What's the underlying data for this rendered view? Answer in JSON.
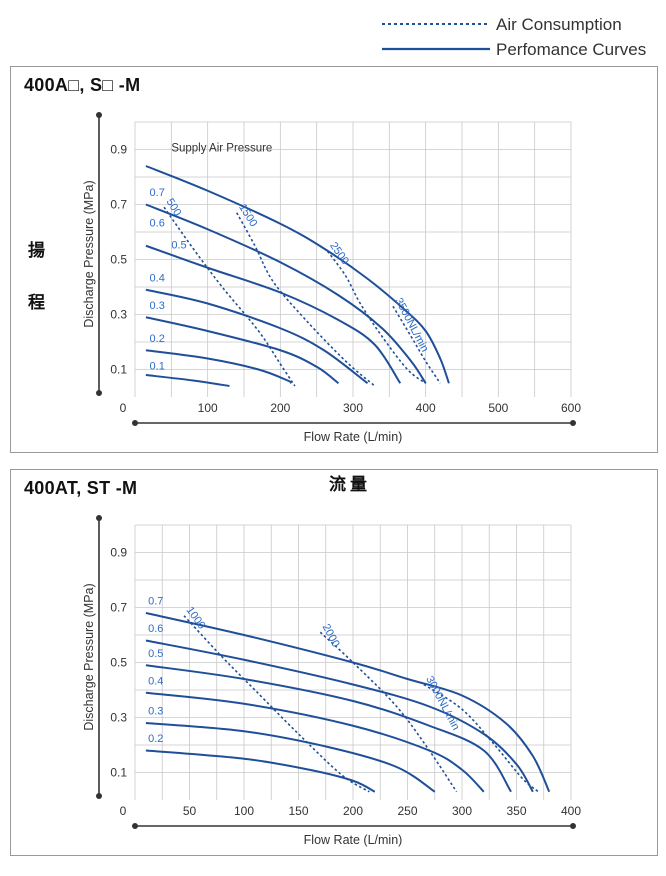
{
  "legend": {
    "air_consumption": "Air Consumption",
    "performance_curves": "Perfomance Curves",
    "dashed_color": "#1f4f99",
    "solid_color": "#1f4f99"
  },
  "side_labels": {
    "lift_1": "揚",
    "lift_2": "程",
    "flow": "流量"
  },
  "colors": {
    "curve": "#1f4f99",
    "grid": "#c8c8c8",
    "axis": "#333333",
    "label": "#2e6cc7"
  },
  "chart_data": [
    {
      "title": "400A□, S□  -M",
      "type": "line",
      "xlabel": "Flow Rate (L/min)",
      "ylabel": "Discharge Pressure (MPa)",
      "xlim": [
        0,
        600
      ],
      "ylim": [
        0,
        1.0
      ],
      "x_ticks": [
        "0",
        "100",
        "200",
        "300",
        "400",
        "500",
        "600"
      ],
      "y_ticks": [
        "0.1",
        "0.3",
        "0.5",
        "0.7",
        "0.9"
      ],
      "grid": true,
      "annotation": "Supply Air Pressure",
      "series": [
        {
          "name": "0.7",
          "points": [
            [
              15,
              0.84
            ],
            [
              100,
              0.75
            ],
            [
              200,
              0.63
            ],
            [
              260,
              0.54
            ],
            [
              320,
              0.43
            ],
            [
              370,
              0.32
            ],
            [
              400,
              0.24
            ],
            [
              420,
              0.14
            ],
            [
              432,
              0.05
            ]
          ]
        },
        {
          "name": "0.6",
          "points": [
            [
              15,
              0.7
            ],
            [
              100,
              0.61
            ],
            [
              200,
              0.49
            ],
            [
              280,
              0.37
            ],
            [
              340,
              0.25
            ],
            [
              380,
              0.13
            ],
            [
              400,
              0.05
            ]
          ]
        },
        {
          "name": "0.5",
          "points": [
            [
              15,
              0.55
            ],
            [
              100,
              0.47
            ],
            [
              200,
              0.38
            ],
            [
              280,
              0.28
            ],
            [
              330,
              0.19
            ],
            [
              365,
              0.05
            ]
          ]
        },
        {
          "name": "0.4",
          "points": [
            [
              15,
              0.39
            ],
            [
              100,
              0.34
            ],
            [
              200,
              0.25
            ],
            [
              260,
              0.17
            ],
            [
              320,
              0.05
            ]
          ]
        },
        {
          "name": "0.3",
          "points": [
            [
              15,
              0.29
            ],
            [
              100,
              0.24
            ],
            [
              200,
              0.17
            ],
            [
              250,
              0.11
            ],
            [
              280,
              0.05
            ]
          ]
        },
        {
          "name": "0.2",
          "points": [
            [
              15,
              0.17
            ],
            [
              100,
              0.14
            ],
            [
              170,
              0.1
            ],
            [
              210,
              0.06
            ],
            [
              215,
              0.05
            ]
          ]
        },
        {
          "name": "0.1",
          "points": [
            [
              15,
              0.08
            ],
            [
              80,
              0.06
            ],
            [
              130,
              0.04
            ]
          ]
        }
      ],
      "consumption_lines": [
        {
          "name": "500",
          "points": [
            [
              40,
              0.69
            ],
            [
              80,
              0.54
            ],
            [
              120,
              0.4
            ],
            [
              170,
              0.24
            ],
            [
              200,
              0.12
            ],
            [
              220,
              0.04
            ]
          ]
        },
        {
          "name": "1500",
          "points": [
            [
              140,
              0.67
            ],
            [
              165,
              0.55
            ],
            [
              190,
              0.42
            ],
            [
              235,
              0.28
            ],
            [
              290,
              0.13
            ],
            [
              330,
              0.04
            ]
          ]
        },
        {
          "name": "2500",
          "points": [
            [
              265,
              0.53
            ],
            [
              290,
              0.44
            ],
            [
              310,
              0.34
            ],
            [
              340,
              0.22
            ],
            [
              375,
              0.1
            ],
            [
              400,
              0.05
            ]
          ]
        },
        {
          "name": "3500NL/min",
          "points": [
            [
              355,
              0.33
            ],
            [
              380,
              0.22
            ],
            [
              400,
              0.13
            ],
            [
              420,
              0.05
            ]
          ]
        }
      ],
      "label_positions": {
        "0.7": [
          20,
          0.72
        ],
        "0.6": [
          20,
          0.61
        ],
        "0.5": [
          50,
          0.53
        ],
        "0.4": [
          20,
          0.41
        ],
        "0.3": [
          20,
          0.31
        ],
        "0.2": [
          20,
          0.19
        ],
        "0.1": [
          20,
          0.09
        ]
      }
    },
    {
      "title": "400AT, ST  -M",
      "type": "line",
      "xlabel": "Flow Rate (L/min)",
      "ylabel": "Discharge Pressure (MPa)",
      "xlim": [
        0,
        400
      ],
      "ylim": [
        0,
        1.0
      ],
      "x_ticks": [
        "0",
        "50",
        "100",
        "150",
        "200",
        "250",
        "300",
        "350",
        "400"
      ],
      "y_ticks": [
        "0.1",
        "0.3",
        "0.5",
        "0.7",
        "0.9"
      ],
      "grid": true,
      "series": [
        {
          "name": "0.7",
          "points": [
            [
              10,
              0.68
            ],
            [
              100,
              0.6
            ],
            [
              200,
              0.5
            ],
            [
              250,
              0.44
            ],
            [
              300,
              0.38
            ],
            [
              340,
              0.28
            ],
            [
              365,
              0.16
            ],
            [
              380,
              0.03
            ]
          ]
        },
        {
          "name": "0.6",
          "points": [
            [
              10,
              0.58
            ],
            [
              100,
              0.51
            ],
            [
              200,
              0.42
            ],
            [
              270,
              0.34
            ],
            [
              320,
              0.24
            ],
            [
              350,
              0.13
            ],
            [
              365,
              0.03
            ]
          ]
        },
        {
          "name": "0.5",
          "points": [
            [
              10,
              0.49
            ],
            [
              100,
              0.44
            ],
            [
              200,
              0.36
            ],
            [
              270,
              0.27
            ],
            [
              320,
              0.18
            ],
            [
              345,
              0.03
            ]
          ]
        },
        {
          "name": "0.4",
          "points": [
            [
              10,
              0.39
            ],
            [
              100,
              0.35
            ],
            [
              200,
              0.27
            ],
            [
              270,
              0.18
            ],
            [
              300,
              0.11
            ],
            [
              320,
              0.03
            ]
          ]
        },
        {
          "name": "0.3",
          "points": [
            [
              10,
              0.28
            ],
            [
              100,
              0.25
            ],
            [
              180,
              0.19
            ],
            [
              240,
              0.12
            ],
            [
              275,
              0.03
            ]
          ]
        },
        {
          "name": "0.2",
          "points": [
            [
              10,
              0.18
            ],
            [
              100,
              0.15
            ],
            [
              160,
              0.11
            ],
            [
              200,
              0.07
            ],
            [
              220,
              0.03
            ]
          ]
        }
      ],
      "consumption_lines": [
        {
          "name": "1000",
          "points": [
            [
              45,
              0.67
            ],
            [
              80,
              0.52
            ],
            [
              110,
              0.4
            ],
            [
              150,
              0.24
            ],
            [
              190,
              0.09
            ],
            [
              215,
              0.03
            ]
          ]
        },
        {
          "name": "2000",
          "points": [
            [
              170,
              0.61
            ],
            [
              200,
              0.5
            ],
            [
              240,
              0.34
            ],
            [
              270,
              0.18
            ],
            [
              295,
              0.03
            ]
          ]
        },
        {
          "name": "3000NL/min",
          "points": [
            [
              265,
              0.42
            ],
            [
              300,
              0.33
            ],
            [
              330,
              0.2
            ],
            [
              355,
              0.08
            ],
            [
              370,
              0.03
            ]
          ]
        }
      ],
      "label_positions": {
        "0.7": [
          12,
          0.7
        ],
        "0.6": [
          12,
          0.6
        ],
        "0.5": [
          12,
          0.51
        ],
        "0.4": [
          12,
          0.41
        ],
        "0.3": [
          12,
          0.3
        ],
        "0.2": [
          12,
          0.2
        ]
      }
    }
  ]
}
